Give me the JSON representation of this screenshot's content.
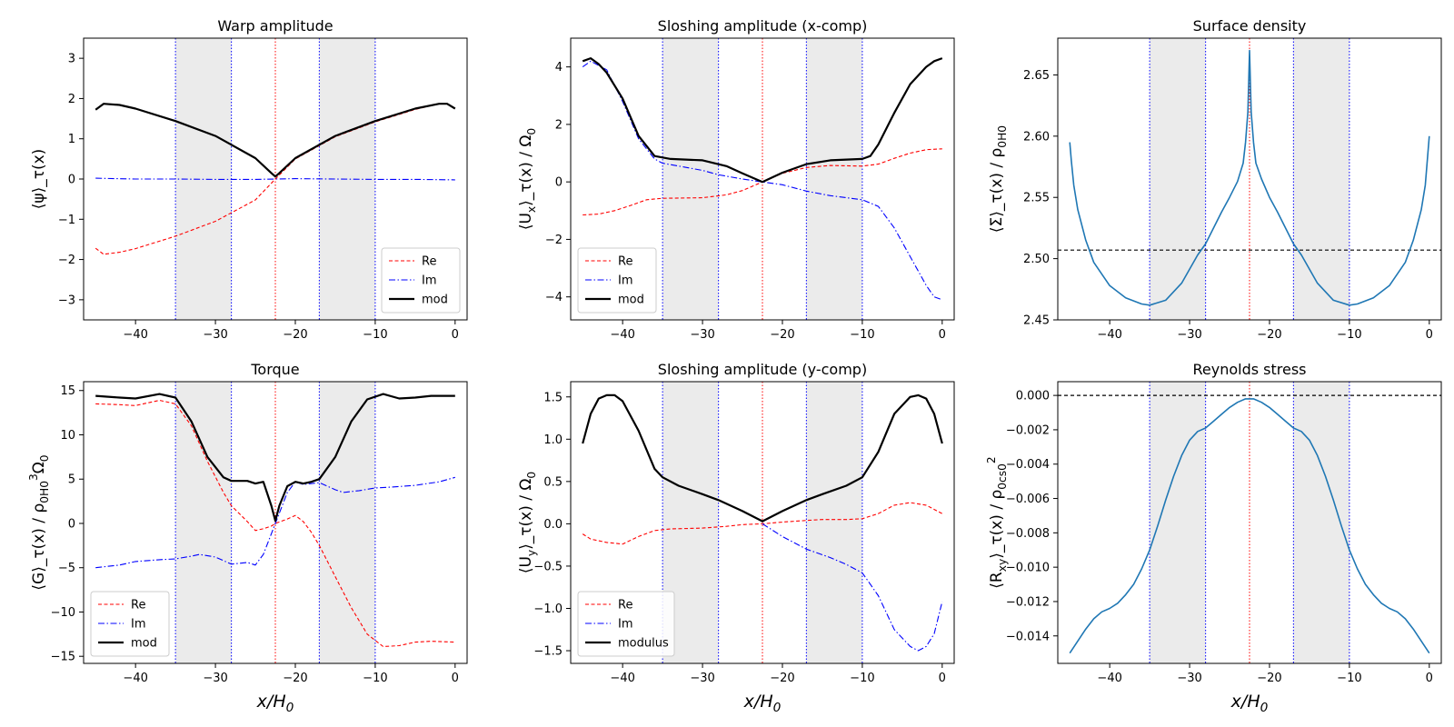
{
  "chart_data": [
    {
      "id": "warp",
      "type": "line",
      "title": "Warp amplitude",
      "ylabel": "⟨ψ⟩_τ(x)",
      "xlabel": "",
      "xlim": [
        -46.5,
        1.5
      ],
      "ylim": [
        -3.5,
        3.5
      ],
      "xticks": [
        -40,
        -30,
        -20,
        -10,
        0
      ],
      "yticks": [
        -3,
        -2,
        -1,
        0,
        1,
        2,
        3
      ],
      "shaded_regions": [
        [
          -35,
          -28
        ],
        [
          -17,
          -10
        ]
      ],
      "blue_vlines": [
        -35,
        -28,
        -17,
        -10
      ],
      "red_vline": -22.5,
      "legend": "lower right",
      "series": [
        {
          "name": "Re",
          "style": "re",
          "x": [
            -45,
            -44,
            -42,
            -40,
            -35,
            -30,
            -25,
            -22.5,
            -20,
            -15,
            -10,
            -5,
            -2,
            -1,
            0
          ],
          "y": [
            -1.72,
            -1.87,
            -1.82,
            -1.73,
            -1.42,
            -1.05,
            -0.52,
            0.0,
            0.5,
            1.05,
            1.42,
            1.73,
            1.87,
            1.87,
            1.75
          ]
        },
        {
          "name": "Im",
          "style": "im",
          "x": [
            -45,
            -40,
            -35,
            -30,
            -25,
            -22.5,
            -20,
            -15,
            -10,
            -5,
            0
          ],
          "y": [
            0.02,
            0.0,
            0.0,
            -0.01,
            -0.01,
            0.0,
            0.01,
            0.0,
            -0.01,
            -0.01,
            -0.02
          ]
        },
        {
          "name": "mod",
          "style": "mod",
          "x": [
            -45,
            -44,
            -42,
            -40,
            -35,
            -30,
            -25,
            -23,
            -22.5,
            -22,
            -20,
            -15,
            -10,
            -5,
            -2,
            -1,
            0
          ],
          "y": [
            1.72,
            1.87,
            1.84,
            1.75,
            1.44,
            1.07,
            0.52,
            0.15,
            0.06,
            0.15,
            0.52,
            1.07,
            1.44,
            1.75,
            1.87,
            1.87,
            1.75
          ]
        }
      ]
    },
    {
      "id": "slosh-x",
      "type": "line",
      "title": "Sloshing amplitude (x-comp)",
      "ylabel": "⟨U_x⟩_τ(x) / Ω_0",
      "xlabel": "",
      "xlim": [
        -46.5,
        1.5
      ],
      "ylim": [
        -4.8,
        5.0
      ],
      "xticks": [
        -40,
        -30,
        -20,
        -10,
        0
      ],
      "yticks": [
        -4,
        -2,
        0,
        2,
        4
      ],
      "shaded_regions": [
        [
          -35,
          -28
        ],
        [
          -17,
          -10
        ]
      ],
      "blue_vlines": [
        -35,
        -28,
        -17,
        -10
      ],
      "red_vline": -22.5,
      "legend": "lower left",
      "series": [
        {
          "name": "Re",
          "style": "re",
          "x": [
            -45,
            -43,
            -41,
            -39,
            -37,
            -35,
            -30,
            -27,
            -25,
            -22.5,
            -20,
            -17,
            -14,
            -10,
            -8,
            -6,
            -4,
            -2,
            0
          ],
          "y": [
            -1.15,
            -1.12,
            -1.0,
            -0.82,
            -0.62,
            -0.57,
            -0.55,
            -0.45,
            -0.3,
            0.0,
            0.3,
            0.5,
            0.57,
            0.55,
            0.62,
            0.82,
            1.0,
            1.12,
            1.15
          ]
        },
        {
          "name": "Im",
          "style": "im",
          "x": [
            -45,
            -44,
            -42,
            -40,
            -38,
            -36,
            -35,
            -32,
            -30,
            -28,
            -25,
            -22.5,
            -20,
            -17,
            -14,
            -10,
            -8,
            -6,
            -4,
            -2,
            -1,
            0
          ],
          "y": [
            4.0,
            4.2,
            3.9,
            2.8,
            1.5,
            0.8,
            0.65,
            0.5,
            0.4,
            0.25,
            0.1,
            0.0,
            -0.1,
            -0.32,
            -0.48,
            -0.62,
            -0.85,
            -1.6,
            -2.6,
            -3.6,
            -4.0,
            -4.1
          ]
        },
        {
          "name": "mod",
          "style": "mod",
          "x": [
            -45,
            -44,
            -43,
            -42,
            -40,
            -38,
            -36,
            -34,
            -30,
            -27,
            -25,
            -22.5,
            -20,
            -17,
            -14,
            -10,
            -9,
            -8,
            -6,
            -4,
            -2,
            -1,
            0
          ],
          "y": [
            4.2,
            4.3,
            4.1,
            3.8,
            2.9,
            1.6,
            0.9,
            0.8,
            0.75,
            0.55,
            0.3,
            0.0,
            0.32,
            0.62,
            0.75,
            0.8,
            0.9,
            1.3,
            2.4,
            3.4,
            4.0,
            4.2,
            4.3
          ]
        }
      ]
    },
    {
      "id": "surface-density",
      "type": "line",
      "title": "Surface density",
      "ylabel": "⟨Σ⟩_τ(x) / ρ_0H_0",
      "xlabel": "",
      "xlim": [
        -46.5,
        1.5
      ],
      "ylim": [
        2.45,
        2.68
      ],
      "xticks": [
        -40,
        -30,
        -20,
        -10,
        0
      ],
      "yticks": [
        2.45,
        2.5,
        2.55,
        2.6,
        2.65
      ],
      "shaded_regions": [
        [
          -35,
          -28
        ],
        [
          -17,
          -10
        ]
      ],
      "blue_vlines": [
        -35,
        -28,
        -17,
        -10
      ],
      "red_vline": -22.5,
      "hline": 2.507,
      "series": [
        {
          "name": "Σ",
          "style": "single",
          "x": [
            -45,
            -44.8,
            -44.5,
            -44,
            -43,
            -42,
            -40,
            -38,
            -36,
            -35,
            -33,
            -31,
            -29,
            -28,
            -26,
            -25,
            -24,
            -23.3,
            -23,
            -22.7,
            -22.5,
            -22.3,
            -22,
            -21.7,
            -21,
            -20,
            -19,
            -17,
            -16,
            -14,
            -12,
            -10,
            -9,
            -7,
            -5,
            -3,
            -2,
            -1,
            -0.5,
            0
          ],
          "y": [
            2.595,
            2.58,
            2.56,
            2.54,
            2.515,
            2.497,
            2.478,
            2.468,
            2.463,
            2.462,
            2.466,
            2.48,
            2.503,
            2.512,
            2.538,
            2.55,
            2.563,
            2.578,
            2.595,
            2.62,
            2.67,
            2.62,
            2.595,
            2.578,
            2.565,
            2.55,
            2.538,
            2.512,
            2.503,
            2.48,
            2.466,
            2.462,
            2.463,
            2.468,
            2.478,
            2.497,
            2.515,
            2.54,
            2.56,
            2.6
          ]
        }
      ]
    },
    {
      "id": "torque",
      "type": "line",
      "title": "Torque",
      "ylabel": "⟨G⟩_τ(x) / ρ_0H_0^3Ω_0",
      "xlabel": "x/H_0",
      "xlim": [
        -46.5,
        1.5
      ],
      "ylim": [
        -15.8,
        16.0
      ],
      "xticks": [
        -40,
        -30,
        -20,
        -10,
        0
      ],
      "yticks": [
        -15,
        -10,
        -5,
        0,
        5,
        10,
        15
      ],
      "shaded_regions": [
        [
          -35,
          -28
        ],
        [
          -17,
          -10
        ]
      ],
      "blue_vlines": [
        -35,
        -28,
        -17,
        -10
      ],
      "red_vline": -22.5,
      "legend": "lower left",
      "series": [
        {
          "name": "Re",
          "style": "re",
          "x": [
            -45,
            -42,
            -40,
            -37,
            -35,
            -33,
            -31,
            -29,
            -28,
            -26,
            -25,
            -24,
            -23,
            -22.5,
            -21,
            -20,
            -19,
            -18,
            -17,
            -15,
            -13,
            -11,
            -9,
            -7,
            -5,
            -3,
            0
          ],
          "y": [
            13.5,
            13.4,
            13.3,
            13.9,
            13.5,
            11.0,
            7.0,
            3.5,
            2.0,
            0.2,
            -0.8,
            -0.6,
            -0.3,
            0.0,
            0.5,
            0.9,
            0.2,
            -1.0,
            -2.5,
            -6.0,
            -9.5,
            -12.5,
            -13.9,
            -13.8,
            -13.4,
            -13.3,
            -13.4
          ]
        },
        {
          "name": "Im",
          "style": "im",
          "x": [
            -45,
            -42,
            -40,
            -37,
            -35,
            -33,
            -32,
            -30,
            -28,
            -26,
            -25,
            -24,
            -22.5,
            -21,
            -20,
            -19,
            -17,
            -15,
            -14,
            -12,
            -10,
            -8,
            -5,
            -2,
            0
          ],
          "y": [
            -5.0,
            -4.7,
            -4.3,
            -4.1,
            -4.0,
            -3.7,
            -3.5,
            -3.8,
            -4.6,
            -4.4,
            -4.7,
            -3.5,
            0.0,
            3.5,
            4.7,
            4.4,
            4.6,
            3.8,
            3.5,
            3.7,
            4.0,
            4.1,
            4.3,
            4.7,
            5.2
          ]
        },
        {
          "name": "mod",
          "style": "mod",
          "x": [
            -45,
            -42,
            -40,
            -37,
            -35,
            -33,
            -31,
            -29,
            -28,
            -26,
            -25,
            -24,
            -23,
            -22.5,
            -22,
            -21,
            -20,
            -19,
            -18,
            -17,
            -15,
            -13,
            -11,
            -9,
            -7,
            -5,
            -3,
            0
          ],
          "y": [
            14.4,
            14.2,
            14.1,
            14.6,
            14.2,
            11.5,
            7.5,
            5.2,
            4.8,
            4.8,
            4.5,
            4.7,
            2.0,
            0.3,
            2.0,
            4.2,
            4.7,
            4.5,
            4.7,
            5.0,
            7.5,
            11.5,
            14.0,
            14.6,
            14.1,
            14.2,
            14.4,
            14.4
          ]
        }
      ]
    },
    {
      "id": "slosh-y",
      "type": "line",
      "title": "Sloshing amplitude (y-comp)",
      "ylabel": "⟨U_y⟩_τ(x) / Ω_0",
      "xlabel": "x/H_0",
      "xlim": [
        -46.5,
        1.5
      ],
      "ylim": [
        -1.65,
        1.68
      ],
      "xticks": [
        -40,
        -30,
        -20,
        -10,
        0
      ],
      "yticks": [
        -1.5,
        -1.0,
        -0.5,
        0.0,
        0.5,
        1.0,
        1.5
      ],
      "shaded_regions": [
        [
          -35,
          -28
        ],
        [
          -17,
          -10
        ]
      ],
      "blue_vlines": [
        -35,
        -28,
        -17,
        -10
      ],
      "red_vline": -22.5,
      "legend": "lower left",
      "series": [
        {
          "name": "Re",
          "style": "re",
          "x": [
            -45,
            -44,
            -42,
            -40,
            -38,
            -36,
            -34,
            -30,
            -27,
            -25,
            -22.5,
            -20,
            -17,
            -15,
            -12,
            -10,
            -8,
            -6,
            -4,
            -2,
            0
          ],
          "y": [
            -0.12,
            -0.18,
            -0.22,
            -0.24,
            -0.15,
            -0.08,
            -0.06,
            -0.05,
            -0.03,
            -0.01,
            0.0,
            0.02,
            0.04,
            0.05,
            0.05,
            0.06,
            0.12,
            0.22,
            0.25,
            0.22,
            0.12
          ]
        },
        {
          "name": "Im",
          "style": "im",
          "x": [
            -22.5,
            -20,
            -17,
            -14,
            -12,
            -10,
            -8,
            -6,
            -4,
            -3,
            -2,
            -1,
            0
          ],
          "y": [
            0.0,
            -0.15,
            -0.3,
            -0.4,
            -0.48,
            -0.58,
            -0.85,
            -1.25,
            -1.45,
            -1.5,
            -1.45,
            -1.3,
            -0.92
          ]
        },
        {
          "name": "modulus",
          "style": "mod",
          "x": [
            -45,
            -44,
            -43,
            -42,
            -41,
            -40,
            -38,
            -36,
            -35,
            -33,
            -30,
            -28,
            -25,
            -22.5,
            -20,
            -17,
            -15,
            -12,
            -10,
            -8,
            -6,
            -4,
            -3,
            -2,
            -1,
            0
          ],
          "y": [
            0.95,
            1.3,
            1.48,
            1.52,
            1.52,
            1.45,
            1.1,
            0.65,
            0.55,
            0.45,
            0.35,
            0.28,
            0.15,
            0.03,
            0.15,
            0.28,
            0.35,
            0.45,
            0.55,
            0.85,
            1.3,
            1.5,
            1.52,
            1.48,
            1.3,
            0.95
          ]
        }
      ]
    },
    {
      "id": "reynolds",
      "type": "line",
      "title": "Reynolds stress",
      "ylabel": "⟨R_xy⟩_τ(x) / ρ_0c_s0^2",
      "xlabel": "x/H_0",
      "xlim": [
        -46.5,
        1.5
      ],
      "ylim": [
        -0.0156,
        0.0008
      ],
      "xticks": [
        -40,
        -30,
        -20,
        -10,
        0
      ],
      "yticks": [
        0.0,
        -0.002,
        -0.004,
        -0.006,
        -0.008,
        -0.01,
        -0.012,
        -0.014
      ],
      "ytick_labels": [
        "0.000",
        "−0.002",
        "−0.004",
        "−0.006",
        "−0.008",
        "−0.010",
        "−0.012",
        "−0.014"
      ],
      "shaded_regions": [
        [
          -35,
          -28
        ],
        [
          -17,
          -10
        ]
      ],
      "blue_vlines": [
        -35,
        -28,
        -17,
        -10
      ],
      "red_vline": -22.5,
      "hline": 0.0,
      "series": [
        {
          "name": "R_xy",
          "style": "single",
          "x": [
            -45,
            -44,
            -43,
            -42,
            -41,
            -40,
            -39,
            -38,
            -37,
            -36,
            -35,
            -34,
            -33,
            -32,
            -31,
            -30,
            -29,
            -28,
            -27,
            -26,
            -25,
            -24,
            -23,
            -22.5,
            -22,
            -21,
            -20,
            -19,
            -18,
            -17,
            -16,
            -15,
            -14,
            -13,
            -12,
            -11,
            -10,
            -9,
            -8,
            -7,
            -6,
            -5,
            -4,
            -3,
            -2,
            -1,
            0
          ],
          "y": [
            -0.015,
            -0.0143,
            -0.0136,
            -0.013,
            -0.0126,
            -0.0124,
            -0.0121,
            -0.0116,
            -0.011,
            -0.0101,
            -0.009,
            -0.0076,
            -0.0061,
            -0.0047,
            -0.0035,
            -0.0026,
            -0.0021,
            -0.0019,
            -0.0015,
            -0.0011,
            -0.0007,
            -0.0004,
            -0.0002,
            -0.0002,
            -0.0002,
            -0.0004,
            -0.0007,
            -0.0011,
            -0.0015,
            -0.0019,
            -0.0021,
            -0.0026,
            -0.0035,
            -0.0047,
            -0.0061,
            -0.0076,
            -0.009,
            -0.0101,
            -0.011,
            -0.0116,
            -0.0121,
            -0.0124,
            -0.0126,
            -0.013,
            -0.0136,
            -0.0143,
            -0.015
          ]
        }
      ]
    }
  ],
  "colors": {
    "re": "#ff0000",
    "im": "#0000ff",
    "mod": "#000000",
    "single": "#1f77b4",
    "shade": "#ebebeb",
    "vline_blue": "#0000ff",
    "vline_red": "#ff0000",
    "hline": "#000000"
  }
}
